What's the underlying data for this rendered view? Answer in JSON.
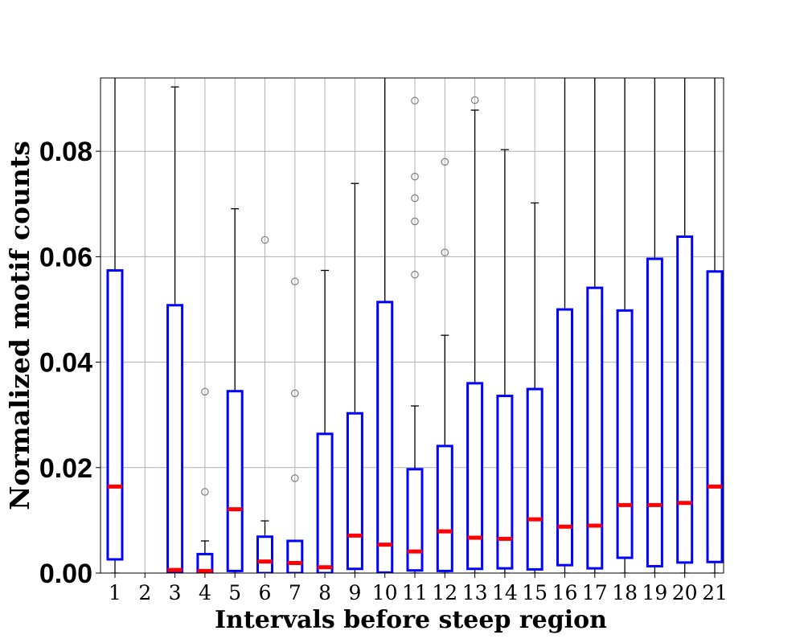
{
  "chart_data": {
    "type": "boxplot",
    "title": "",
    "xlabel": "Intervals before steep region",
    "ylabel": "Normalized motif counts",
    "ylim": [
      0,
      0.094
    ],
    "yticks": [
      0.0,
      0.02,
      0.04,
      0.06,
      0.08
    ],
    "ytick_labels": [
      "0.00",
      "0.02",
      "0.04",
      "0.06",
      "0.08"
    ],
    "categories": [
      "1",
      "2",
      "3",
      "4",
      "5",
      "6",
      "7",
      "8",
      "9",
      "10",
      "11",
      "12",
      "13",
      "14",
      "15",
      "16",
      "17",
      "18",
      "19",
      "20",
      "21"
    ],
    "grid": true,
    "colors": {
      "box": "#0000ff",
      "median": "#ff0000",
      "whisker": "#000000",
      "outlier": "#7f7f7f",
      "grid": "#b0b0b0"
    },
    "boxes": [
      {
        "q1": 0.0026,
        "median": 0.0164,
        "q3": 0.0574,
        "whislo": 0.0,
        "whishi": 0.2,
        "fliers": []
      },
      null,
      {
        "q1": 0.0,
        "median": 0.0006,
        "q3": 0.0508,
        "whislo": 0.0,
        "whishi": 0.0922,
        "fliers": []
      },
      {
        "q1": 0.0,
        "median": 0.0004,
        "q3": 0.0036,
        "whislo": 0.0,
        "whishi": 0.0061,
        "fliers": [
          0.0154,
          0.0344
        ]
      },
      {
        "q1": 0.0004,
        "median": 0.0121,
        "q3": 0.0345,
        "whislo": 0.0,
        "whishi": 0.0691,
        "fliers": []
      },
      {
        "q1": 0.0,
        "median": 0.0022,
        "q3": 0.0069,
        "whislo": 0.0,
        "whishi": 0.0099,
        "fliers": [
          0.0632
        ]
      },
      {
        "q1": 0.0,
        "median": 0.0019,
        "q3": 0.0061,
        "whislo": 0.0,
        "whishi": 0.0061,
        "fliers": [
          0.018,
          0.0341,
          0.0553
        ]
      },
      {
        "q1": 0.0,
        "median": 0.0011,
        "q3": 0.0264,
        "whislo": 0.0,
        "whishi": 0.0574,
        "fliers": []
      },
      {
        "q1": 0.0008,
        "median": 0.0071,
        "q3": 0.0303,
        "whislo": 0.0,
        "whishi": 0.0739,
        "fliers": []
      },
      {
        "q1": 0.0001,
        "median": 0.0054,
        "q3": 0.0514,
        "whislo": 0.0,
        "whishi": 0.2,
        "fliers": []
      },
      {
        "q1": 0.0005,
        "median": 0.0041,
        "q3": 0.0197,
        "whislo": 0.0,
        "whishi": 0.0317,
        "fliers": [
          0.0566,
          0.0667,
          0.0711,
          0.0752,
          0.0896
        ]
      },
      {
        "q1": 0.0004,
        "median": 0.0079,
        "q3": 0.0241,
        "whislo": 0.0,
        "whishi": 0.0451,
        "fliers": [
          0.0608,
          0.078
        ]
      },
      {
        "q1": 0.0008,
        "median": 0.0067,
        "q3": 0.036,
        "whislo": 0.0,
        "whishi": 0.0878,
        "fliers": [
          0.0897
        ]
      },
      {
        "q1": 0.0009,
        "median": 0.0065,
        "q3": 0.0336,
        "whislo": 0.0,
        "whishi": 0.0803,
        "fliers": []
      },
      {
        "q1": 0.0007,
        "median": 0.0102,
        "q3": 0.0349,
        "whislo": 0.0,
        "whishi": 0.0702,
        "fliers": []
      },
      {
        "q1": 0.0015,
        "median": 0.0088,
        "q3": 0.05,
        "whislo": 0.0,
        "whishi": 0.2,
        "fliers": []
      },
      {
        "q1": 0.0009,
        "median": 0.009,
        "q3": 0.0541,
        "whislo": 0.0,
        "whishi": 0.2,
        "fliers": []
      },
      {
        "q1": 0.0029,
        "median": 0.0129,
        "q3": 0.0498,
        "whislo": 0.0,
        "whishi": 0.2,
        "fliers": []
      },
      {
        "q1": 0.0013,
        "median": 0.0129,
        "q3": 0.0596,
        "whislo": 0.0,
        "whishi": 0.2,
        "fliers": []
      },
      {
        "q1": 0.002,
        "median": 0.0133,
        "q3": 0.0638,
        "whislo": 0.0,
        "whishi": 0.2,
        "fliers": []
      },
      {
        "q1": 0.0021,
        "median": 0.0164,
        "q3": 0.0572,
        "whislo": 0.0,
        "whishi": 0.2,
        "fliers": []
      }
    ]
  }
}
